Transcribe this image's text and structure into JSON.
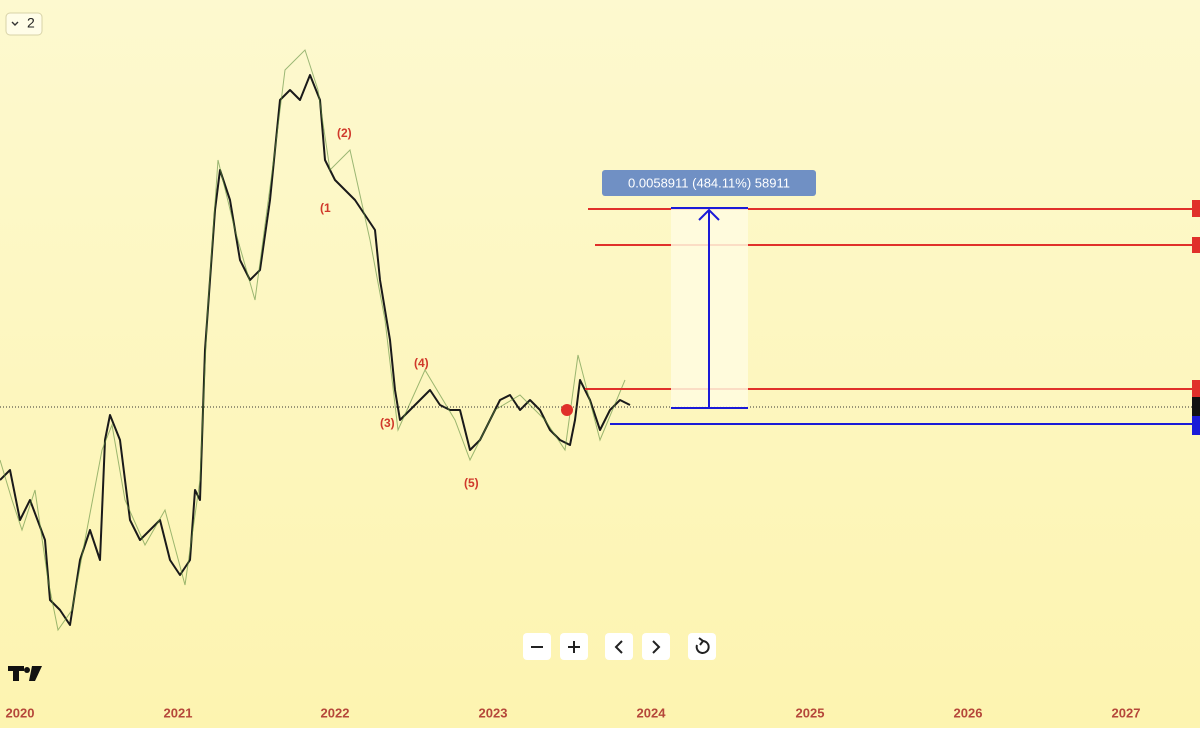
{
  "legend_toggle": "2",
  "wave_labels": [
    "(1",
    "(2)",
    "(3)",
    "(4)",
    "(5)"
  ],
  "measure_label": "0.0058911 (484.11%) 58911",
  "time_axis": [
    "2020",
    "2021",
    "2022",
    "2023",
    "2024",
    "2025",
    "2026",
    "2027"
  ]
}
